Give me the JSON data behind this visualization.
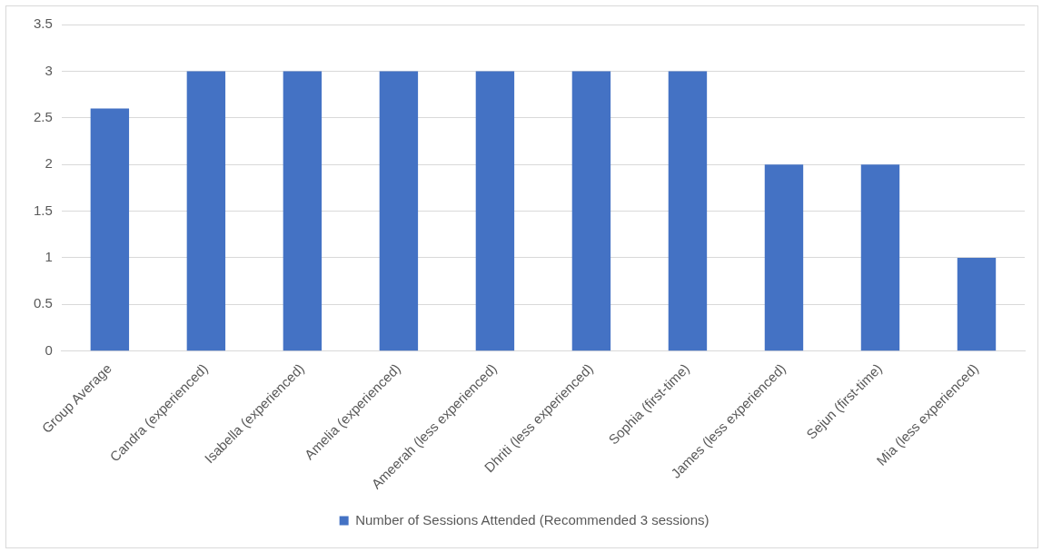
{
  "chart_data": {
    "type": "bar",
    "categories": [
      "Group Average",
      "Candra (experienced)",
      "Isabella (experienced)",
      "Amelia (experienced)",
      "Ameerah (less experienced)",
      "Dhriti (less experienced)",
      "Sophia (first-time)",
      "James (less experienced)",
      "Sejun (first-time)",
      "Mia (less experienced)"
    ],
    "series": [
      {
        "name": "Number of Sessions Attended (Recommended 3 sessions)",
        "color": "#4472c4",
        "values": [
          2.6,
          3,
          3,
          3,
          3,
          3,
          3,
          2,
          2,
          1
        ]
      }
    ],
    "ylim": [
      0,
      3.5
    ],
    "yticks": [
      0,
      0.5,
      1,
      1.5,
      2,
      2.5,
      3,
      3.5
    ],
    "grid": "y",
    "legend": "bottom"
  }
}
